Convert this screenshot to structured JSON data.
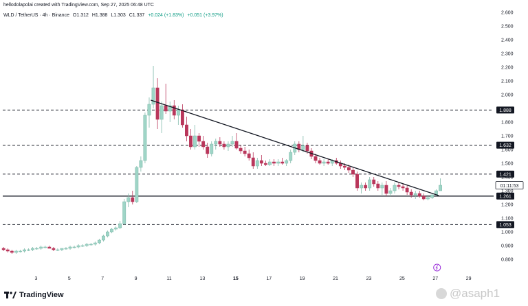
{
  "header": {
    "credit": "hellodolapolai created with TradingView.com, Sep 27, 2025 06:48 UTC",
    "symbol": "WLD / TetherUS · 4h · Binance",
    "open": "O1.312",
    "high": "H1.388",
    "low": "L1.303",
    "close": "C1.337",
    "change": "+0.024 (+1.83%)",
    "extra_change": "+0.051 (+3.97%)"
  },
  "footer": {
    "brand": "TradingView",
    "watermark": "@asaph1"
  },
  "colors": {
    "up": "#089981",
    "down": "#b9365b",
    "up_fill": "#9fd5c7",
    "line": "#131722",
    "text": "#131722"
  },
  "chart_data": {
    "type": "candlestick",
    "y_ticks": [
      "0.800",
      "0.900",
      "1.000",
      "1.100",
      "1.200",
      "1.300",
      "1.400",
      "1.500",
      "1.600",
      "1.700",
      "1.800",
      "1.900",
      "2.000",
      "2.100",
      "2.200",
      "2.300",
      "2.400",
      "2.500",
      "2.600"
    ],
    "x_ticks": [
      "3",
      "5",
      "7",
      "9",
      "11",
      "13",
      "15",
      "17",
      "19",
      "21",
      "23",
      "25",
      "27",
      "29"
    ],
    "bold_x_ticks": [
      "15"
    ],
    "ylim": [
      0.73,
      2.62
    ],
    "xlim": [
      1.0,
      30.5
    ],
    "levels": [
      {
        "price": 1.888,
        "label": "1.888",
        "style": "dashed"
      },
      {
        "price": 1.632,
        "label": "1.632",
        "style": "dashed"
      },
      {
        "price": 1.421,
        "label": "1.421",
        "style": "dashed"
      },
      {
        "price": 1.261,
        "label": "1.261",
        "style": "solid"
      },
      {
        "price": 1.053,
        "label": "1.053",
        "style": "dashed"
      }
    ],
    "countdown": {
      "label": "01:11:53",
      "price": 1.337
    },
    "trendline": {
      "from": {
        "day": 9.9,
        "price": 1.96
      },
      "to": {
        "day": 27.2,
        "price": 1.265
      }
    },
    "candles": [
      {
        "day": 1.05,
        "o": 0.88,
        "h": 0.89,
        "l": 0.86,
        "c": 0.87
      },
      {
        "day": 1.3,
        "o": 0.87,
        "h": 0.88,
        "l": 0.85,
        "c": 0.86
      },
      {
        "day": 1.55,
        "o": 0.86,
        "h": 0.87,
        "l": 0.84,
        "c": 0.85
      },
      {
        "day": 1.8,
        "o": 0.85,
        "h": 0.87,
        "l": 0.84,
        "c": 0.86
      },
      {
        "day": 2.05,
        "o": 0.86,
        "h": 0.87,
        "l": 0.85,
        "c": 0.86
      },
      {
        "day": 2.3,
        "o": 0.86,
        "h": 0.88,
        "l": 0.85,
        "c": 0.87
      },
      {
        "day": 2.55,
        "o": 0.87,
        "h": 0.88,
        "l": 0.86,
        "c": 0.87
      },
      {
        "day": 2.8,
        "o": 0.87,
        "h": 0.89,
        "l": 0.86,
        "c": 0.88
      },
      {
        "day": 3.05,
        "o": 0.88,
        "h": 0.89,
        "l": 0.87,
        "c": 0.88
      },
      {
        "day": 3.3,
        "o": 0.88,
        "h": 0.9,
        "l": 0.87,
        "c": 0.89
      },
      {
        "day": 3.55,
        "o": 0.89,
        "h": 0.9,
        "l": 0.88,
        "c": 0.89
      },
      {
        "day": 3.8,
        "o": 0.89,
        "h": 0.9,
        "l": 0.88,
        "c": 0.88
      },
      {
        "day": 4.05,
        "o": 0.88,
        "h": 0.89,
        "l": 0.86,
        "c": 0.87
      },
      {
        "day": 4.3,
        "o": 0.87,
        "h": 0.88,
        "l": 0.86,
        "c": 0.87
      },
      {
        "day": 4.55,
        "o": 0.87,
        "h": 0.88,
        "l": 0.86,
        "c": 0.88
      },
      {
        "day": 4.8,
        "o": 0.88,
        "h": 0.89,
        "l": 0.87,
        "c": 0.88
      },
      {
        "day": 5.05,
        "o": 0.88,
        "h": 0.9,
        "l": 0.87,
        "c": 0.89
      },
      {
        "day": 5.3,
        "o": 0.89,
        "h": 0.9,
        "l": 0.88,
        "c": 0.89
      },
      {
        "day": 5.55,
        "o": 0.89,
        "h": 0.91,
        "l": 0.88,
        "c": 0.9
      },
      {
        "day": 5.8,
        "o": 0.9,
        "h": 0.91,
        "l": 0.89,
        "c": 0.9
      },
      {
        "day": 6.05,
        "o": 0.9,
        "h": 0.92,
        "l": 0.89,
        "c": 0.91
      },
      {
        "day": 6.3,
        "o": 0.91,
        "h": 0.92,
        "l": 0.9,
        "c": 0.91
      },
      {
        "day": 6.55,
        "o": 0.91,
        "h": 0.93,
        "l": 0.9,
        "c": 0.92
      },
      {
        "day": 6.8,
        "o": 0.92,
        "h": 0.95,
        "l": 0.91,
        "c": 0.94
      },
      {
        "day": 7.05,
        "o": 0.94,
        "h": 0.98,
        "l": 0.93,
        "c": 0.97
      },
      {
        "day": 7.3,
        "o": 0.97,
        "h": 1.01,
        "l": 0.96,
        "c": 1.0
      },
      {
        "day": 7.55,
        "o": 1.0,
        "h": 1.03,
        "l": 0.99,
        "c": 1.02
      },
      {
        "day": 7.8,
        "o": 1.02,
        "h": 1.04,
        "l": 1.01,
        "c": 1.03
      },
      {
        "day": 8.05,
        "o": 1.03,
        "h": 1.08,
        "l": 1.02,
        "c": 1.06
      },
      {
        "day": 8.3,
        "o": 1.06,
        "h": 1.24,
        "l": 1.05,
        "c": 1.22
      },
      {
        "day": 8.55,
        "o": 1.22,
        "h": 1.28,
        "l": 1.18,
        "c": 1.25
      },
      {
        "day": 8.8,
        "o": 1.25,
        "h": 1.3,
        "l": 1.2,
        "c": 1.22
      },
      {
        "day": 9.05,
        "o": 1.22,
        "h": 1.48,
        "l": 1.21,
        "c": 1.47
      },
      {
        "day": 9.3,
        "o": 1.47,
        "h": 1.55,
        "l": 1.44,
        "c": 1.52
      },
      {
        "day": 9.55,
        "o": 1.52,
        "h": 1.87,
        "l": 1.5,
        "c": 1.85
      },
      {
        "day": 9.8,
        "o": 1.85,
        "h": 1.98,
        "l": 1.76,
        "c": 1.93
      },
      {
        "day": 10.05,
        "o": 1.93,
        "h": 2.21,
        "l": 1.9,
        "c": 2.05
      },
      {
        "day": 10.3,
        "o": 2.05,
        "h": 2.12,
        "l": 1.75,
        "c": 1.82
      },
      {
        "day": 10.55,
        "o": 1.82,
        "h": 1.95,
        "l": 1.72,
        "c": 1.92
      },
      {
        "day": 10.8,
        "o": 1.92,
        "h": 2.08,
        "l": 1.86,
        "c": 1.88
      },
      {
        "day": 11.05,
        "o": 1.88,
        "h": 1.95,
        "l": 1.8,
        "c": 1.92
      },
      {
        "day": 11.3,
        "o": 1.92,
        "h": 1.96,
        "l": 1.82,
        "c": 1.85
      },
      {
        "day": 11.55,
        "o": 1.85,
        "h": 1.92,
        "l": 1.78,
        "c": 1.89
      },
      {
        "day": 11.8,
        "o": 1.89,
        "h": 1.93,
        "l": 1.76,
        "c": 1.78
      },
      {
        "day": 12.05,
        "o": 1.78,
        "h": 1.84,
        "l": 1.66,
        "c": 1.7
      },
      {
        "day": 12.3,
        "o": 1.7,
        "h": 1.75,
        "l": 1.6,
        "c": 1.62
      },
      {
        "day": 12.55,
        "o": 1.62,
        "h": 1.78,
        "l": 1.6,
        "c": 1.7
      },
      {
        "day": 12.8,
        "o": 1.7,
        "h": 1.72,
        "l": 1.62,
        "c": 1.66
      },
      {
        "day": 13.05,
        "o": 1.66,
        "h": 1.7,
        "l": 1.6,
        "c": 1.62
      },
      {
        "day": 13.3,
        "o": 1.62,
        "h": 1.65,
        "l": 1.54,
        "c": 1.57
      },
      {
        "day": 13.55,
        "o": 1.57,
        "h": 1.66,
        "l": 1.55,
        "c": 1.64
      },
      {
        "day": 13.8,
        "o": 1.64,
        "h": 1.68,
        "l": 1.6,
        "c": 1.66
      },
      {
        "day": 14.05,
        "o": 1.66,
        "h": 1.69,
        "l": 1.62,
        "c": 1.64
      },
      {
        "day": 14.3,
        "o": 1.64,
        "h": 1.66,
        "l": 1.6,
        "c": 1.62
      },
      {
        "day": 14.55,
        "o": 1.62,
        "h": 1.66,
        "l": 1.59,
        "c": 1.64
      },
      {
        "day": 14.8,
        "o": 1.64,
        "h": 1.7,
        "l": 1.62,
        "c": 1.66
      },
      {
        "day": 15.05,
        "o": 1.66,
        "h": 1.72,
        "l": 1.6,
        "c": 1.61
      },
      {
        "day": 15.3,
        "o": 1.61,
        "h": 1.63,
        "l": 1.57,
        "c": 1.59
      },
      {
        "day": 15.55,
        "o": 1.59,
        "h": 1.62,
        "l": 1.55,
        "c": 1.57
      },
      {
        "day": 15.8,
        "o": 1.57,
        "h": 1.6,
        "l": 1.52,
        "c": 1.54
      },
      {
        "day": 16.05,
        "o": 1.54,
        "h": 1.58,
        "l": 1.46,
        "c": 1.48
      },
      {
        "day": 16.3,
        "o": 1.48,
        "h": 1.54,
        "l": 1.46,
        "c": 1.52
      },
      {
        "day": 16.55,
        "o": 1.52,
        "h": 1.56,
        "l": 1.48,
        "c": 1.5
      },
      {
        "day": 16.8,
        "o": 1.5,
        "h": 1.52,
        "l": 1.48,
        "c": 1.49
      },
      {
        "day": 17.05,
        "o": 1.49,
        "h": 1.53,
        "l": 1.48,
        "c": 1.51
      },
      {
        "day": 17.3,
        "o": 1.51,
        "h": 1.53,
        "l": 1.48,
        "c": 1.5
      },
      {
        "day": 17.55,
        "o": 1.5,
        "h": 1.53,
        "l": 1.48,
        "c": 1.51
      },
      {
        "day": 17.8,
        "o": 1.51,
        "h": 1.54,
        "l": 1.49,
        "c": 1.5
      },
      {
        "day": 18.05,
        "o": 1.5,
        "h": 1.53,
        "l": 1.48,
        "c": 1.52
      },
      {
        "day": 18.3,
        "o": 1.52,
        "h": 1.6,
        "l": 1.5,
        "c": 1.58
      },
      {
        "day": 18.55,
        "o": 1.58,
        "h": 1.66,
        "l": 1.56,
        "c": 1.64
      },
      {
        "day": 18.8,
        "o": 1.64,
        "h": 1.66,
        "l": 1.58,
        "c": 1.6
      },
      {
        "day": 19.05,
        "o": 1.6,
        "h": 1.7,
        "l": 1.58,
        "c": 1.63
      },
      {
        "day": 19.3,
        "o": 1.63,
        "h": 1.65,
        "l": 1.57,
        "c": 1.59
      },
      {
        "day": 19.55,
        "o": 1.59,
        "h": 1.61,
        "l": 1.53,
        "c": 1.55
      },
      {
        "day": 19.8,
        "o": 1.55,
        "h": 1.57,
        "l": 1.5,
        "c": 1.52
      },
      {
        "day": 20.05,
        "o": 1.52,
        "h": 1.54,
        "l": 1.49,
        "c": 1.5
      },
      {
        "day": 20.3,
        "o": 1.5,
        "h": 1.53,
        "l": 1.48,
        "c": 1.51
      },
      {
        "day": 20.55,
        "o": 1.51,
        "h": 1.53,
        "l": 1.49,
        "c": 1.5
      },
      {
        "day": 20.8,
        "o": 1.5,
        "h": 1.53,
        "l": 1.48,
        "c": 1.52
      },
      {
        "day": 21.05,
        "o": 1.52,
        "h": 1.54,
        "l": 1.49,
        "c": 1.5
      },
      {
        "day": 21.3,
        "o": 1.5,
        "h": 1.52,
        "l": 1.46,
        "c": 1.48
      },
      {
        "day": 21.55,
        "o": 1.48,
        "h": 1.5,
        "l": 1.45,
        "c": 1.47
      },
      {
        "day": 21.8,
        "o": 1.47,
        "h": 1.49,
        "l": 1.43,
        "c": 1.45
      },
      {
        "day": 22.05,
        "o": 1.45,
        "h": 1.47,
        "l": 1.4,
        "c": 1.42
      },
      {
        "day": 22.3,
        "o": 1.42,
        "h": 1.44,
        "l": 1.3,
        "c": 1.32
      },
      {
        "day": 22.55,
        "o": 1.32,
        "h": 1.36,
        "l": 1.28,
        "c": 1.34
      },
      {
        "day": 22.8,
        "o": 1.34,
        "h": 1.36,
        "l": 1.3,
        "c": 1.32
      },
      {
        "day": 23.05,
        "o": 1.32,
        "h": 1.4,
        "l": 1.3,
        "c": 1.38
      },
      {
        "day": 23.3,
        "o": 1.38,
        "h": 1.4,
        "l": 1.33,
        "c": 1.35
      },
      {
        "day": 23.55,
        "o": 1.35,
        "h": 1.37,
        "l": 1.3,
        "c": 1.32
      },
      {
        "day": 23.8,
        "o": 1.32,
        "h": 1.36,
        "l": 1.27,
        "c": 1.34
      },
      {
        "day": 24.05,
        "o": 1.34,
        "h": 1.37,
        "l": 1.26,
        "c": 1.28
      },
      {
        "day": 24.3,
        "o": 1.28,
        "h": 1.32,
        "l": 1.26,
        "c": 1.3
      },
      {
        "day": 24.55,
        "o": 1.3,
        "h": 1.36,
        "l": 1.28,
        "c": 1.34
      },
      {
        "day": 24.8,
        "o": 1.34,
        "h": 1.36,
        "l": 1.31,
        "c": 1.33
      },
      {
        "day": 25.05,
        "o": 1.33,
        "h": 1.35,
        "l": 1.3,
        "c": 1.32
      },
      {
        "day": 25.3,
        "o": 1.32,
        "h": 1.34,
        "l": 1.27,
        "c": 1.29
      },
      {
        "day": 25.55,
        "o": 1.29,
        "h": 1.31,
        "l": 1.25,
        "c": 1.27
      },
      {
        "day": 25.8,
        "o": 1.27,
        "h": 1.3,
        "l": 1.24,
        "c": 1.28
      },
      {
        "day": 26.05,
        "o": 1.28,
        "h": 1.3,
        "l": 1.25,
        "c": 1.26
      },
      {
        "day": 26.3,
        "o": 1.26,
        "h": 1.28,
        "l": 1.23,
        "c": 1.24
      },
      {
        "day": 26.55,
        "o": 1.24,
        "h": 1.27,
        "l": 1.23,
        "c": 1.25
      },
      {
        "day": 26.8,
        "o": 1.25,
        "h": 1.28,
        "l": 1.24,
        "c": 1.27
      },
      {
        "day": 27.05,
        "o": 1.27,
        "h": 1.31,
        "l": 1.26,
        "c": 1.3
      },
      {
        "day": 27.3,
        "o": 1.3,
        "h": 1.39,
        "l": 1.3,
        "c": 1.34
      }
    ]
  }
}
